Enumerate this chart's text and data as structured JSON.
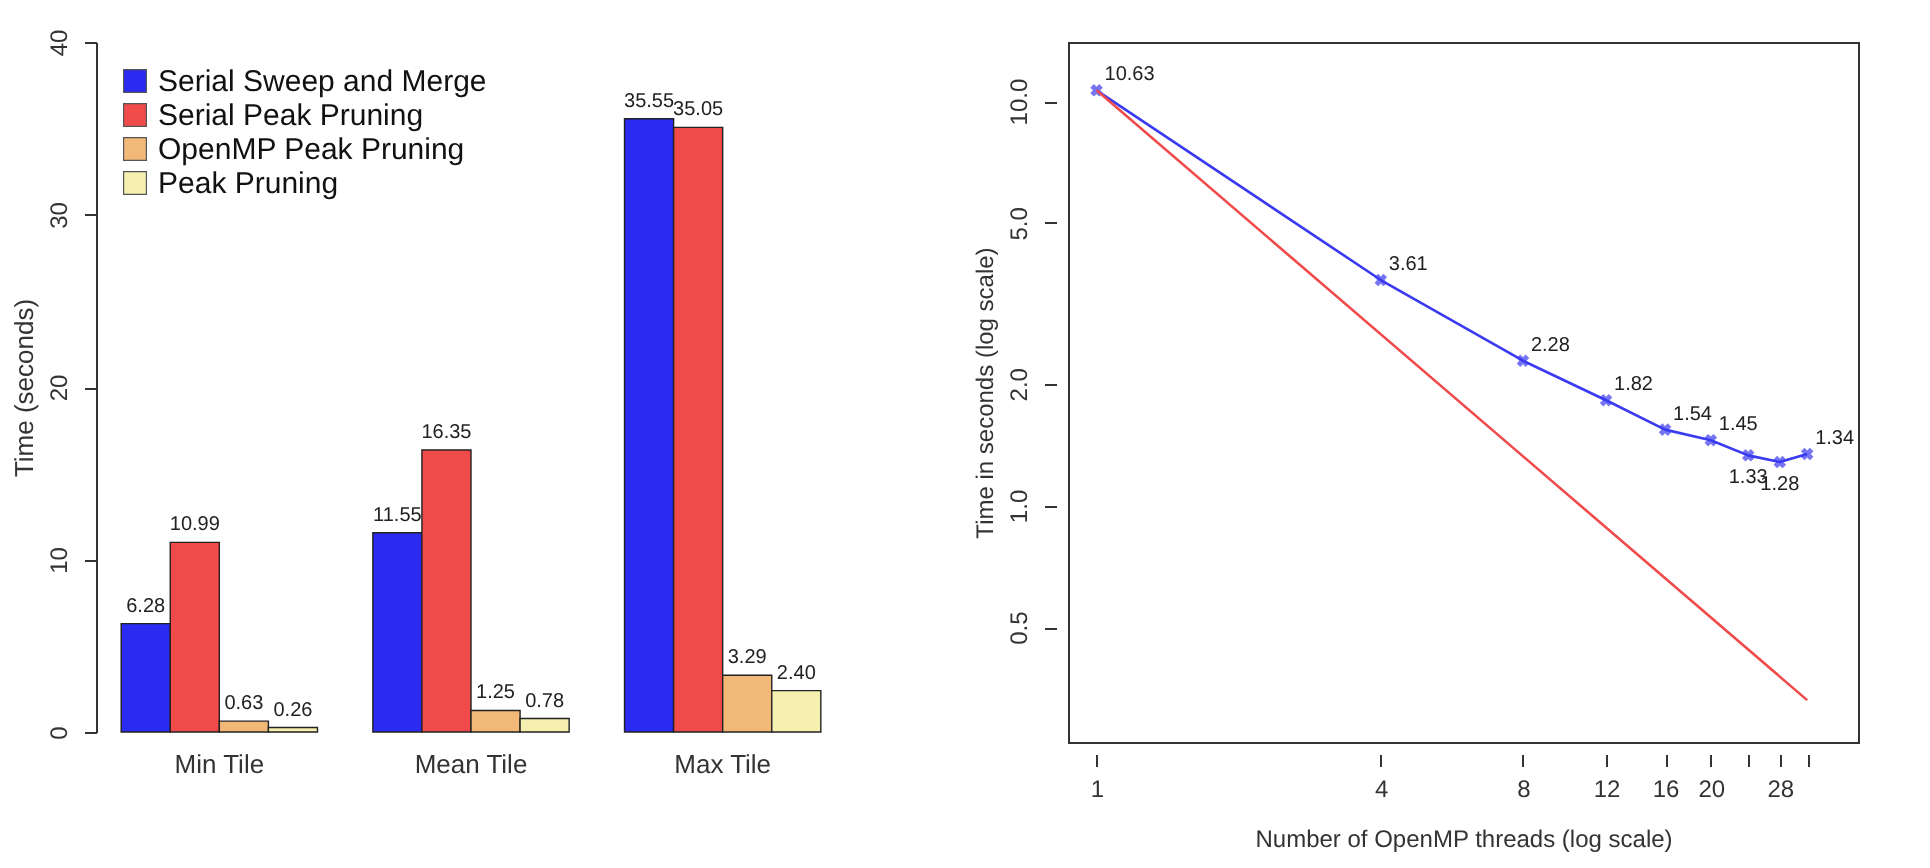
{
  "chart_data": [
    {
      "type": "bar",
      "categories": [
        "Min Tile",
        "Mean Tile",
        "Max Tile"
      ],
      "series": [
        {
          "name": "Serial Sweep and Merge",
          "color": "#2a2af0",
          "values": [
            6.28,
            11.55,
            35.55
          ],
          "value_labels": [
            "6.28",
            "11.55",
            "35.55"
          ]
        },
        {
          "name": "Serial Peak Pruning",
          "color": "#f04a4a",
          "values": [
            10.99,
            16.35,
            35.05
          ],
          "value_labels": [
            "10.99",
            "16.35",
            "35.05"
          ]
        },
        {
          "name": "OpenMP Peak Pruning",
          "color": "#f2b878",
          "values": [
            0.63,
            1.25,
            3.29
          ],
          "value_labels": [
            "0.63",
            "1.25",
            "3.29"
          ]
        },
        {
          "name": "Peak Pruning",
          "color": "#f6f0b0",
          "values": [
            0.26,
            0.78,
            2.4
          ],
          "value_labels": [
            "0.26",
            "0.78",
            "2.40"
          ]
        }
      ],
      "ylabel": "Time (seconds)",
      "ylim": [
        0,
        40
      ],
      "yticks": [
        0,
        10,
        20,
        30,
        40
      ],
      "legend": "top left"
    },
    {
      "type": "line",
      "x": [
        1,
        4,
        8,
        12,
        16,
        20,
        24,
        28,
        32
      ],
      "series": [
        {
          "color": "#3a3af0",
          "values": [
            10.63,
            3.61,
            2.28,
            1.82,
            1.54,
            1.45,
            1.33,
            1.28,
            1.34
          ],
          "value_labels": [
            "10.63",
            "3.61",
            "2.28",
            "1.82",
            "1.54",
            "1.45",
            "1.33",
            "1.28",
            "1.34"
          ],
          "marker": "cross"
        },
        {
          "color": "#f04a4a",
          "x": [
            1,
            32
          ],
          "values": [
            10.63,
            0.33
          ],
          "marker": "none"
        }
      ],
      "xlabel": "Number of OpenMP threads (log scale)",
      "ylabel": "Time in seconds (log scale)",
      "log": "xy",
      "xlim": [
        0.87,
        41
      ],
      "ylim": [
        0.26,
        14
      ],
      "xticks": [
        1,
        4,
        8,
        12,
        16,
        20,
        {
          "value": 24,
          "label": null
        },
        28,
        {
          "value": 32,
          "label": null
        }
      ],
      "yticks": [
        {
          "value": 0.5,
          "label": "0.5"
        },
        {
          "value": 1,
          "label": "1.0"
        },
        {
          "value": 2,
          "label": "2.0"
        },
        {
          "value": 5,
          "label": "5.0"
        },
        {
          "value": 10,
          "label": "10.0"
        }
      ]
    }
  ]
}
